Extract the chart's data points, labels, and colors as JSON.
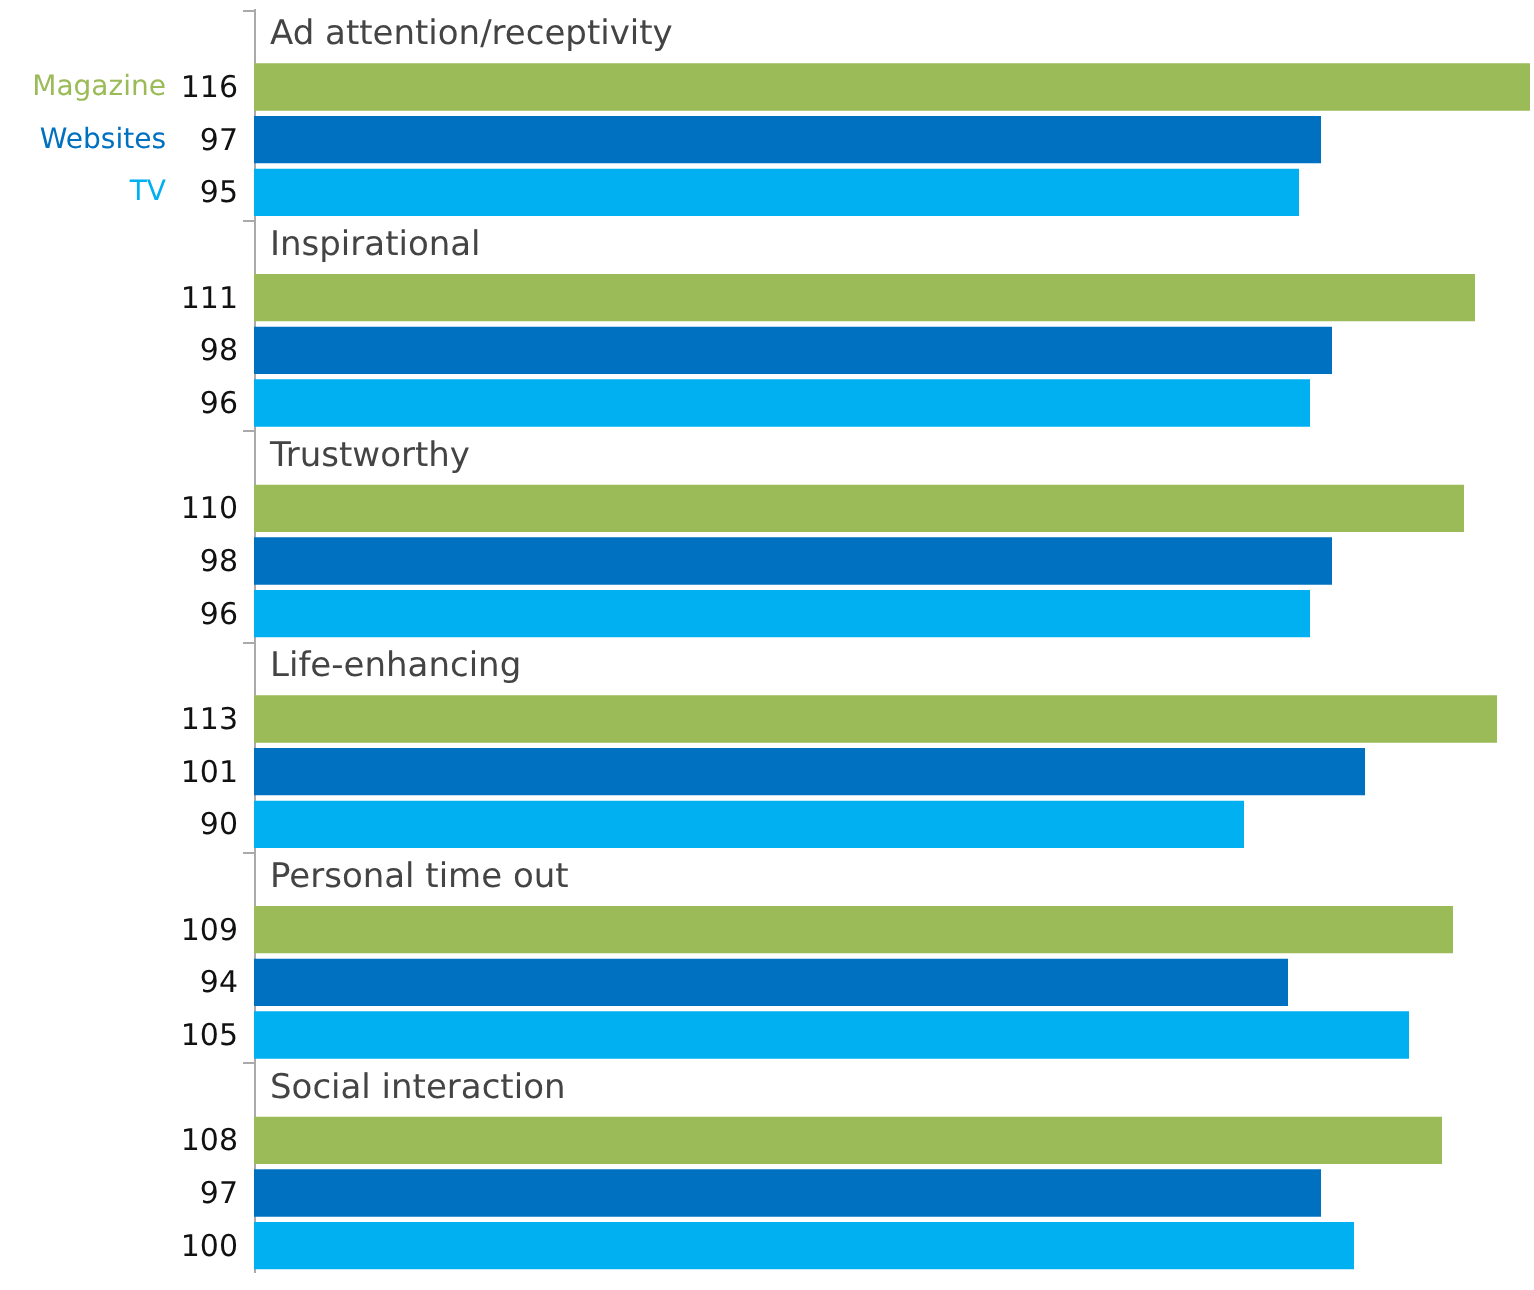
{
  "chart_data": {
    "type": "bar",
    "orientation": "horizontal",
    "categories": [
      "Ad attention/receptivity",
      "Inspirational",
      "Trustworthy",
      "Life-enhancing",
      "Personal time out",
      "Social interaction"
    ],
    "series": [
      {
        "name": "Magazine",
        "color": "#9bbb59",
        "values": [
          116,
          111,
          110,
          113,
          109,
          108
        ]
      },
      {
        "name": "Websites",
        "color": "#0070c0",
        "values": [
          97,
          98,
          98,
          101,
          94,
          97
        ]
      },
      {
        "name": "TV",
        "color": "#00b0f0",
        "values": [
          95,
          96,
          96,
          90,
          105,
          100
        ]
      }
    ],
    "data_labels": true,
    "legend": false
  }
}
